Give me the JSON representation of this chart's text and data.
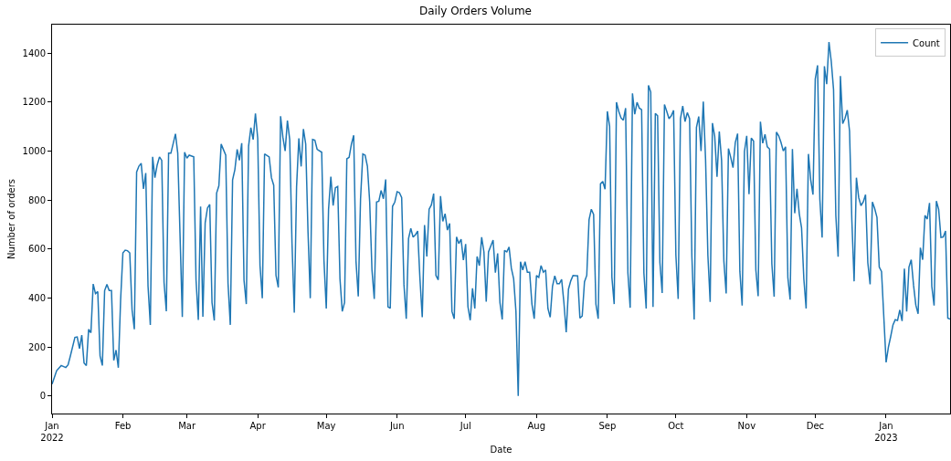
{
  "chart_data": {
    "type": "line",
    "title": "Daily Orders Volume",
    "xlabel": "Date",
    "ylabel": "Number of orders",
    "x": [
      "2022-01-01",
      "2022-01-03",
      "2022-01-05",
      "2022-01-07",
      "2022-01-08",
      "2022-01-09",
      "2022-01-11",
      "2022-01-12",
      "2022-01-13",
      "2022-01-14",
      "2022-01-15",
      "2022-01-16",
      "2022-01-17",
      "2022-01-18",
      "2022-01-19",
      "2022-01-20",
      "2022-01-21",
      "2022-01-22",
      "2022-01-23",
      "2022-01-24",
      "2022-01-25",
      "2022-01-26",
      "2022-01-27",
      "2022-01-28",
      "2022-01-29",
      "2022-01-30",
      "2022-01-31",
      "2022-02-01",
      "2022-02-02",
      "2022-02-03",
      "2022-02-04",
      "2022-02-05",
      "2022-02-06",
      "2022-02-07",
      "2022-02-08",
      "2022-02-09",
      "2022-02-10",
      "2022-02-11",
      "2022-02-12",
      "2022-02-13",
      "2022-02-14",
      "2022-02-15",
      "2022-02-16",
      "2022-02-17",
      "2022-02-18",
      "2022-02-19",
      "2022-02-20",
      "2022-02-21",
      "2022-02-22",
      "2022-02-24",
      "2022-02-25",
      "2022-02-27",
      "2022-02-28",
      "2022-03-01",
      "2022-03-02",
      "2022-03-04",
      "2022-03-05",
      "2022-03-06",
      "2022-03-07",
      "2022-03-08",
      "2022-03-09",
      "2022-03-10",
      "2022-03-11",
      "2022-03-12",
      "2022-03-13",
      "2022-03-14",
      "2022-03-15",
      "2022-03-16",
      "2022-03-18",
      "2022-03-19",
      "2022-03-20",
      "2022-03-21",
      "2022-03-22",
      "2022-03-23",
      "2022-03-24",
      "2022-03-25",
      "2022-03-26",
      "2022-03-27",
      "2022-03-28",
      "2022-03-29",
      "2022-03-30",
      "2022-03-31",
      "2022-04-01",
      "2022-04-02",
      "2022-04-03",
      "2022-04-04",
      "2022-04-06",
      "2022-04-07",
      "2022-04-08",
      "2022-04-09",
      "2022-04-10",
      "2022-04-11",
      "2022-04-12",
      "2022-04-13",
      "2022-04-14",
      "2022-04-15",
      "2022-04-16",
      "2022-04-17",
      "2022-04-18",
      "2022-04-19",
      "2022-04-20",
      "2022-04-21",
      "2022-04-22",
      "2022-04-23",
      "2022-04-24",
      "2022-04-25",
      "2022-04-26",
      "2022-04-27",
      "2022-04-29",
      "2022-04-30",
      "2022-05-01",
      "2022-05-02",
      "2022-05-03",
      "2022-05-04",
      "2022-05-05",
      "2022-05-06",
      "2022-05-07",
      "2022-05-08",
      "2022-05-09",
      "2022-05-10",
      "2022-05-11",
      "2022-05-12",
      "2022-05-13",
      "2022-05-14",
      "2022-05-15",
      "2022-05-16",
      "2022-05-17",
      "2022-05-18",
      "2022-05-19",
      "2022-05-20",
      "2022-05-21",
      "2022-05-22",
      "2022-05-23",
      "2022-05-24",
      "2022-05-25",
      "2022-05-26",
      "2022-05-27",
      "2022-05-28",
      "2022-05-29",
      "2022-05-30",
      "2022-05-31",
      "2022-06-01",
      "2022-06-02",
      "2022-06-03",
      "2022-06-04",
      "2022-06-05",
      "2022-06-06",
      "2022-06-07",
      "2022-06-08",
      "2022-06-09",
      "2022-06-10",
      "2022-06-11",
      "2022-06-12",
      "2022-06-13",
      "2022-06-14",
      "2022-06-15",
      "2022-06-16",
      "2022-06-17",
      "2022-06-18",
      "2022-06-19",
      "2022-06-20",
      "2022-06-21",
      "2022-06-22",
      "2022-06-23",
      "2022-06-24",
      "2022-06-25",
      "2022-06-26",
      "2022-06-27",
      "2022-06-28",
      "2022-06-29",
      "2022-06-30",
      "2022-07-01",
      "2022-07-02",
      "2022-07-03",
      "2022-07-04",
      "2022-07-05",
      "2022-07-06",
      "2022-07-07",
      "2022-07-08",
      "2022-07-09",
      "2022-07-10",
      "2022-07-11",
      "2022-07-13",
      "2022-07-14",
      "2022-07-15",
      "2022-07-16",
      "2022-07-17",
      "2022-07-18",
      "2022-07-19",
      "2022-07-20",
      "2022-07-21",
      "2022-07-22",
      "2022-07-23",
      "2022-07-24",
      "2022-07-25",
      "2022-07-26",
      "2022-07-27",
      "2022-07-28",
      "2022-07-29",
      "2022-07-30",
      "2022-07-31",
      "2022-08-01",
      "2022-08-02",
      "2022-08-03",
      "2022-08-04",
      "2022-08-05",
      "2022-08-06",
      "2022-08-07",
      "2022-08-08",
      "2022-08-09",
      "2022-08-10",
      "2022-08-11",
      "2022-08-12",
      "2022-08-13",
      "2022-08-14",
      "2022-08-15",
      "2022-08-16",
      "2022-08-17",
      "2022-08-19",
      "2022-08-20",
      "2022-08-21",
      "2022-08-22",
      "2022-08-23",
      "2022-08-24",
      "2022-08-25",
      "2022-08-26",
      "2022-08-27",
      "2022-08-28",
      "2022-08-29",
      "2022-08-30",
      "2022-08-31",
      "2022-09-01",
      "2022-09-02",
      "2022-09-03",
      "2022-09-04",
      "2022-09-05",
      "2022-09-06",
      "2022-09-07",
      "2022-09-08",
      "2022-09-09",
      "2022-09-10",
      "2022-09-11",
      "2022-09-12",
      "2022-09-13",
      "2022-09-14",
      "2022-09-15",
      "2022-09-16",
      "2022-09-17",
      "2022-09-18",
      "2022-09-19",
      "2022-09-20",
      "2022-09-21",
      "2022-09-22",
      "2022-09-23",
      "2022-09-24",
      "2022-09-25",
      "2022-09-26",
      "2022-09-27",
      "2022-09-28",
      "2022-09-29",
      "2022-09-30",
      "2022-10-01",
      "2022-10-02",
      "2022-10-03",
      "2022-10-04",
      "2022-10-05",
      "2022-10-06",
      "2022-10-07",
      "2022-10-08",
      "2022-10-09",
      "2022-10-10",
      "2022-10-11",
      "2022-10-12",
      "2022-10-13",
      "2022-10-14",
      "2022-10-15",
      "2022-10-16",
      "2022-10-17",
      "2022-10-18",
      "2022-10-19",
      "2022-10-20",
      "2022-10-21",
      "2022-10-22",
      "2022-10-23",
      "2022-10-24",
      "2022-10-25",
      "2022-10-26",
      "2022-10-27",
      "2022-10-28",
      "2022-10-29",
      "2022-10-30",
      "2022-10-31",
      "2022-11-01",
      "2022-11-02",
      "2022-11-03",
      "2022-11-04",
      "2022-11-05",
      "2022-11-06",
      "2022-11-07",
      "2022-11-08",
      "2022-11-09",
      "2022-11-10",
      "2022-11-11",
      "2022-11-12",
      "2022-11-13",
      "2022-11-14",
      "2022-11-15",
      "2022-11-16",
      "2022-11-17",
      "2022-11-18",
      "2022-11-19",
      "2022-11-20",
      "2022-11-21",
      "2022-11-22",
      "2022-11-23",
      "2022-11-24",
      "2022-11-25",
      "2022-11-26",
      "2022-11-27",
      "2022-11-28",
      "2022-11-29",
      "2022-11-30",
      "2022-12-01",
      "2022-12-02",
      "2022-12-03",
      "2022-12-04",
      "2022-12-05",
      "2022-12-06",
      "2022-12-07",
      "2022-12-08",
      "2022-12-09",
      "2022-12-10",
      "2022-12-11",
      "2022-12-12",
      "2022-12-13",
      "2022-12-14",
      "2022-12-15",
      "2022-12-16",
      "2022-12-17",
      "2022-12-18",
      "2022-12-19",
      "2022-12-20",
      "2022-12-21",
      "2022-12-22",
      "2022-12-23",
      "2022-12-24",
      "2022-12-25",
      "2022-12-26",
      "2022-12-27",
      "2022-12-28",
      "2022-12-29",
      "2022-12-30",
      "2023-01-01",
      "2023-01-02",
      "2023-01-03",
      "2023-01-04",
      "2023-01-05",
      "2023-01-06",
      "2023-01-07",
      "2023-01-08",
      "2023-01-09",
      "2023-01-10",
      "2023-01-11",
      "2023-01-12",
      "2023-01-13",
      "2023-01-14",
      "2023-01-15",
      "2023-01-16",
      "2023-01-17",
      "2023-01-18",
      "2023-01-19",
      "2023-01-20",
      "2023-01-21",
      "2023-01-22",
      "2023-01-23",
      "2023-01-24",
      "2023-01-25",
      "2023-01-26",
      "2023-01-27",
      "2023-01-28",
      "2023-01-29"
    ],
    "series": [
      {
        "name": "Count",
        "color": "#1f77b4",
        "values": [
          48,
          103,
          124,
          116,
          127,
          163,
          239,
          241,
          193,
          248,
          134,
          124,
          272,
          258,
          457,
          418,
          426,
          163,
          124,
          430,
          455,
          430,
          430,
          145,
          187,
          115,
          393,
          584,
          595,
          593,
          584,
          352,
          272,
          914,
          938,
          950,
          845,
          910,
          448,
          290,
          976,
          891,
          943,
          976,
          962,
          464,
          346,
          991,
          991,
          1070,
          991,
          322,
          995,
          971,
          983,
          976,
          474,
          310,
          773,
          323,
          707,
          767,
          782,
          381,
          308,
          828,
          858,
          1028,
          983,
          460,
          290,
          882,
          924,
          1007,
          962,
          1032,
          472,
          375,
          1020,
          1095,
          1047,
          1153,
          1052,
          532,
          399,
          988,
          976,
          891,
          860,
          492,
          443,
          1142,
          1057,
          1000,
          1124,
          1047,
          624,
          340,
          854,
          1052,
          937,
          1090,
          1028,
          673,
          399,
          1047,
          1044,
          1007,
          995,
          551,
          357,
          762,
          895,
          777,
          850,
          855,
          478,
          345,
          381,
          968,
          974,
          1028,
          1064,
          551,
          406,
          805,
          988,
          983,
          938,
          792,
          514,
          396,
          792,
          795,
          839,
          805,
          884,
          364,
          358,
          774,
          792,
          834,
          830,
          810,
          454,
          315,
          642,
          684,
          648,
          658,
          673,
          478,
          321,
          698,
          569,
          762,
          780,
          826,
          492,
          474,
          816,
          713,
          744,
          677,
          704,
          345,
          315,
          649,
          622,
          640,
          555,
          620,
          364,
          309,
          439,
          357,
          569,
          532,
          648,
          588,
          385,
          588,
          636,
          503,
          582,
          381,
          312,
          594,
          588,
          608,
          521,
          478,
          345,
          0,
          548,
          514,
          548,
          505,
          505,
          375,
          315,
          492,
          484,
          532,
          505,
          514,
          357,
          321,
          448,
          490,
          458,
          458,
          476,
          381,
          260,
          436,
          470,
          492,
          490,
          318,
          326,
          466,
          492,
          720,
          762,
          741,
          375,
          315,
          866,
          876,
          844,
          1162,
          1101,
          484,
          375,
          1199,
          1162,
          1135,
          1126,
          1175,
          502,
          360,
          1235,
          1150,
          1199,
          1175,
          1169,
          502,
          357,
          1268,
          1241,
          363,
          1153,
          1144,
          545,
          420,
          1190,
          1162,
          1132,
          1144,
          1166,
          575,
          396,
          1132,
          1184,
          1120,
          1157,
          1132,
          569,
          312,
          1096,
          1141,
          1000,
          1202,
          962,
          575,
          384,
          1114,
          1059,
          895,
          1080,
          962,
          551,
          418,
          1010,
          974,
          932,
          1035,
          1071,
          509,
          369,
          998,
          1062,
          824,
          1053,
          1041,
          514,
          407,
          1120,
          1032,
          1068,
          1017,
          1008,
          539,
          405,
          1077,
          1062,
          1035,
          1000,
          1017,
          484,
          393,
          1008,
          746,
          846,
          744,
          686,
          478,
          357,
          988,
          883,
          822,
          1294,
          1350,
          804,
          647,
          1346,
          1273,
          1445,
          1366,
          1251,
          737,
          568,
          1306,
          1112,
          1133,
          1167,
          1082,
          719,
          468,
          891,
          810,
          777,
          792,
          822,
          544,
          456,
          792,
          765,
          729,
          526,
          508,
          137,
          199,
          242,
          290,
          311,
          308,
          351,
          306,
          520,
          345,
          526,
          556,
          453,
          371,
          335,
          605,
          556,
          737,
          722,
          788,
          447,
          369,
          796,
          762,
          647,
          649,
          673,
          318,
          314
        ]
      }
    ],
    "xlim": [
      "2022-01-01",
      "2023-01-29"
    ],
    "xticks": [
      {
        "value": "2022-01-01",
        "label": "Jan\n2022"
      },
      {
        "value": "2022-02-01",
        "label": "Feb"
      },
      {
        "value": "2022-03-01",
        "label": "Mar"
      },
      {
        "value": "2022-04-01",
        "label": "Apr"
      },
      {
        "value": "2022-05-01",
        "label": "May"
      },
      {
        "value": "2022-06-01",
        "label": "Jun"
      },
      {
        "value": "2022-07-01",
        "label": "Jul"
      },
      {
        "value": "2022-08-01",
        "label": "Aug"
      },
      {
        "value": "2022-09-01",
        "label": "Sep"
      },
      {
        "value": "2022-10-01",
        "label": "Oct"
      },
      {
        "value": "2022-11-01",
        "label": "Nov"
      },
      {
        "value": "2022-12-01",
        "label": "Dec"
      },
      {
        "value": "2023-01-01",
        "label": "Jan\n2023"
      }
    ],
    "ylim": [
      -72,
      1516
    ],
    "yticks": [
      0,
      200,
      400,
      600,
      800,
      1000,
      1200,
      1400
    ],
    "grid": false,
    "legend": "top right",
    "marker": "none",
    "line_style": "solid"
  }
}
